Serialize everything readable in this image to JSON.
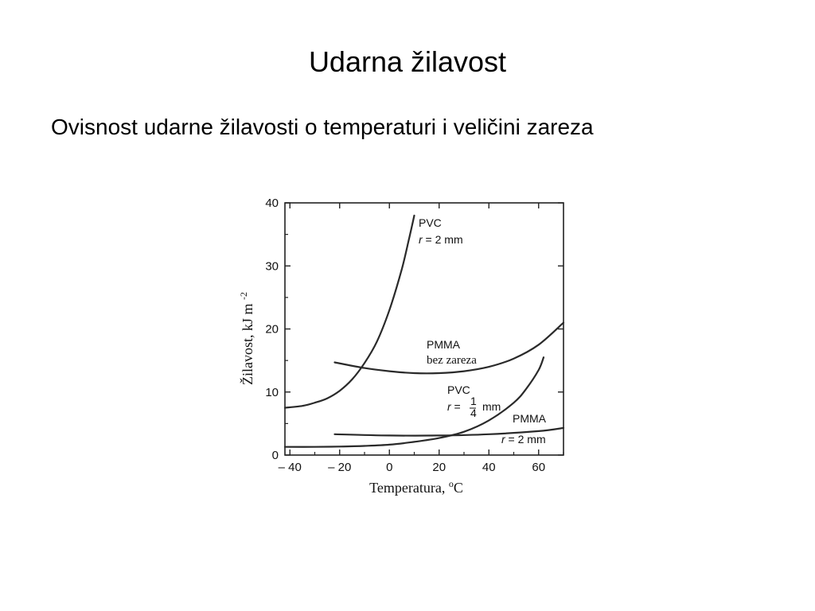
{
  "slide": {
    "title": "Udarna žilavost",
    "subtitle": "Ovisnost udarne žilavosti o temperaturi i veličini zareza"
  },
  "chart_data": {
    "type": "line",
    "xlabel": "Temperatura,",
    "xlabel_unit_sup": "o",
    "xlabel_unit": "C",
    "ylabel": "Žilavost, kJ m",
    "ylabel_exp": "-2",
    "xlim": [
      -42,
      70
    ],
    "ylim": [
      0,
      40
    ],
    "x_ticks": [
      -40,
      -20,
      0,
      20,
      40,
      60
    ],
    "x_tick_labels": [
      "– 40",
      "– 20",
      "0",
      "20",
      "40",
      "60"
    ],
    "y_ticks": [
      0,
      10,
      20,
      30,
      40
    ],
    "y_tick_labels": [
      "0",
      "10",
      "20",
      "30",
      "40"
    ],
    "grid": false,
    "series": [
      {
        "name_lines": [
          "PVC",
          "r = 2 mm"
        ],
        "x": [
          -42,
          -35,
          -30,
          -25,
          -20,
          -15,
          -10,
          -5,
          0,
          5,
          8,
          10
        ],
        "y": [
          7.5,
          7.8,
          8.3,
          9.0,
          10.2,
          12.0,
          14.6,
          18.0,
          23.0,
          29.5,
          34.5,
          38.0
        ]
      },
      {
        "name_lines": [
          "PMMA",
          "bez zareza"
        ],
        "x": [
          -22,
          -10,
          0,
          10,
          20,
          30,
          40,
          50,
          60,
          70
        ],
        "y": [
          14.7,
          13.8,
          13.3,
          13.0,
          13.0,
          13.3,
          14.0,
          15.3,
          17.5,
          21.0
        ]
      },
      {
        "name_lines": [
          "PVC",
          "r = 1/4 mm"
        ],
        "x": [
          -42,
          -30,
          -20,
          -10,
          0,
          10,
          20,
          30,
          40,
          50,
          55,
          60,
          62
        ],
        "y": [
          1.3,
          1.3,
          1.35,
          1.45,
          1.65,
          2.1,
          2.7,
          3.7,
          5.5,
          8.3,
          10.5,
          13.5,
          15.5
        ]
      },
      {
        "name_lines": [
          "PMMA",
          "r = 2 mm"
        ],
        "x": [
          -22,
          0,
          20,
          40,
          60,
          70
        ],
        "y": [
          3.3,
          3.1,
          3.1,
          3.3,
          3.8,
          4.3
        ]
      }
    ]
  }
}
